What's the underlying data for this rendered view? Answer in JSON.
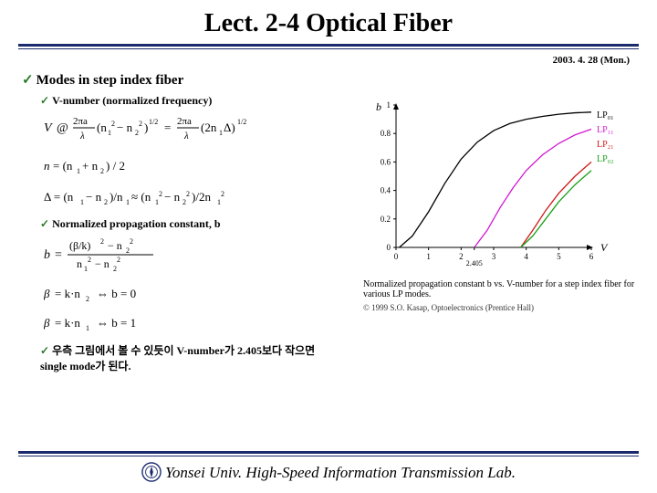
{
  "title": "Lect. 2-4 Optical Fiber",
  "date": "2003. 4. 28 (Mon.)",
  "bullets": {
    "main": "Modes in step index fiber",
    "sub1": "V-number (normalized frequency)",
    "sub2": "Normalized propagation constant, b",
    "sub3": "우측 그림에서 볼 수 있듯이 V-number가 2.405보다 작으면 single mode가 된다."
  },
  "formulas": {
    "v_eq": "V @ (2πa/λ)(n₁² − n₂²)^{1/2} = (2πa/λ)(2n₁Δ)^{1/2}",
    "n_eq": "n = (n₁ + n₂) / 2",
    "delta_eq": "Δ = (n₁ − n₂)/n₁ ≈ (n₁² − n₂²)/2n₁²",
    "b_eq": "b = ((β/k)² − n₂²) / (n₁² − n₂²)",
    "beta1": "β = k·n₂ ⇔ b = 0",
    "beta2": "β = k·n₁ ⇔ b = 1"
  },
  "chart": {
    "y_label": "b",
    "x_label": "V",
    "xlim": [
      0,
      6
    ],
    "ylim": [
      0,
      1
    ],
    "xticks": [
      0,
      1,
      2,
      2.405,
      3,
      4,
      5,
      6
    ],
    "yticks": [
      0,
      0.2,
      0.4,
      0.6,
      0.8,
      1
    ],
    "x_special": 2.405,
    "background": "#ffffff",
    "axis_color": "#000000",
    "series": [
      {
        "name": "LP01",
        "label": "LP₀₁",
        "color": "#000000",
        "points": [
          [
            0.1,
            0
          ],
          [
            0.5,
            0.08
          ],
          [
            1,
            0.25
          ],
          [
            1.5,
            0.45
          ],
          [
            2,
            0.62
          ],
          [
            2.5,
            0.74
          ],
          [
            3,
            0.82
          ],
          [
            3.5,
            0.87
          ],
          [
            4,
            0.9
          ],
          [
            4.5,
            0.92
          ],
          [
            5,
            0.935
          ],
          [
            5.5,
            0.945
          ],
          [
            6,
            0.95
          ]
        ]
      },
      {
        "name": "LP11",
        "label": "LP₁₁",
        "color": "#d018d0",
        "points": [
          [
            2.405,
            0
          ],
          [
            2.8,
            0.12
          ],
          [
            3.2,
            0.28
          ],
          [
            3.6,
            0.42
          ],
          [
            4,
            0.54
          ],
          [
            4.5,
            0.65
          ],
          [
            5,
            0.73
          ],
          [
            5.5,
            0.79
          ],
          [
            6,
            0.83
          ]
        ]
      },
      {
        "name": "LP21",
        "label": "LP₂₁",
        "color": "#d01818",
        "points": [
          [
            3.83,
            0
          ],
          [
            4.2,
            0.12
          ],
          [
            4.6,
            0.26
          ],
          [
            5,
            0.38
          ],
          [
            5.5,
            0.5
          ],
          [
            6,
            0.6
          ]
        ]
      },
      {
        "name": "LP02",
        "label": "LP₀₂",
        "color": "#18a018",
        "points": [
          [
            3.83,
            0
          ],
          [
            4.2,
            0.08
          ],
          [
            4.6,
            0.2
          ],
          [
            5,
            0.32
          ],
          [
            5.5,
            0.44
          ],
          [
            6,
            0.54
          ]
        ]
      }
    ],
    "caption": "Normalized propagation constant b vs. V-number for a step index fiber for various LP modes.",
    "credit": "© 1999 S.O. Kasap, Optoelectronics (Prentice Hall)"
  },
  "footer": "Yonsei Univ. High-Speed Information Transmission Lab.",
  "colors": {
    "rule": "#1a2a6c",
    "check": "#2a7a2a"
  }
}
